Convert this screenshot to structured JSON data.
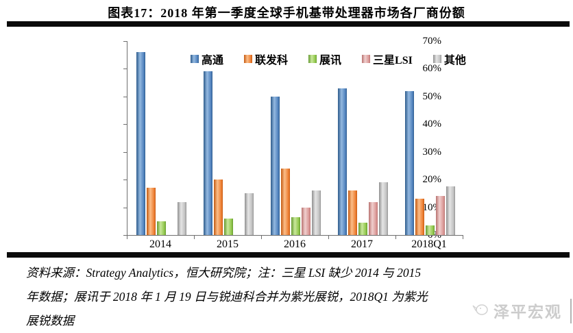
{
  "page": {
    "title": "图表17：2018 年第一季度全球手机基带处理器市场各厂商份额",
    "source_note_lines": [
      "资料来源：Strategy Analytics，恒大研究院；注：三星 LSI 缺少 2014 与 2015",
      "年数据；展讯于 2018 年 1 月 19 日与锐迪科合并为紫光展锐，2018Q1 为紫光",
      "展锐数据"
    ],
    "watermark": {
      "text": "泽平宏观"
    }
  },
  "chart_data": {
    "type": "bar",
    "title": "2018 年第一季度全球手机基带处理器市场各厂商份额",
    "categories": [
      "2014",
      "2015",
      "2016",
      "2017",
      "2018Q1"
    ],
    "series": [
      {
        "name": "高通",
        "color": "#4f81bd",
        "color_light": "#94b9e0",
        "color_dark": "#2d5b8c",
        "values": [
          66,
          59,
          50,
          53,
          52
        ]
      },
      {
        "name": "联发科",
        "color": "#ed7d31",
        "color_light": "#fbbd88",
        "color_dark": "#c55a11",
        "values": [
          17,
          20,
          24,
          16,
          13
        ]
      },
      {
        "name": "展讯",
        "color": "#8ec549",
        "color_light": "#c9e89b",
        "color_dark": "#64992f",
        "values": [
          5,
          6,
          6.5,
          4.5,
          3.5
        ]
      },
      {
        "name": "三星LSI",
        "color": "#d99694",
        "color_light": "#f0cfce",
        "color_dark": "#b97270",
        "values": [
          null,
          null,
          10,
          12,
          14
        ]
      },
      {
        "name": "其他",
        "color": "#bfbfbf",
        "color_light": "#e5e5e5",
        "color_dark": "#909090",
        "values": [
          12,
          15,
          16,
          19,
          17.5
        ]
      }
    ],
    "ylim": [
      0,
      70
    ],
    "ytick_step": 10,
    "ytick_suffix": "%",
    "grid": false,
    "legend_position": "top-inside"
  }
}
